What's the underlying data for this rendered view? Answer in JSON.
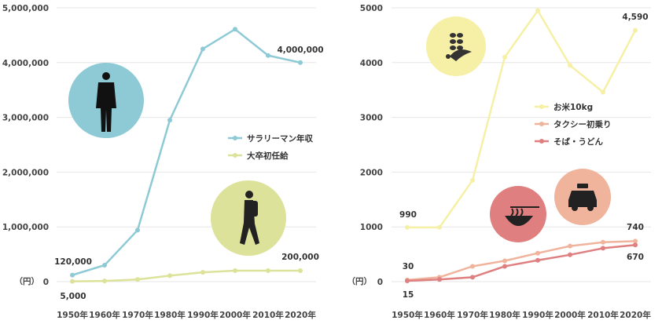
{
  "chart_data": [
    {
      "type": "line",
      "categories": [
        "1950年",
        "1960年",
        "1970年",
        "1980年",
        "1990年",
        "2000年",
        "2010年",
        "2020年"
      ],
      "ylim": [
        0,
        5000000
      ],
      "yticks": [
        "0",
        "1,000,000",
        "2,000,000",
        "3,000,000",
        "4,000,000",
        "5,000,000"
      ],
      "unit": "（円）",
      "grid": true,
      "legend_position": "right-middle",
      "series": [
        {
          "name": "サラリーマン年収",
          "color": "#8ecad5",
          "values": [
            120000,
            300000,
            940000,
            2950000,
            4250000,
            4610000,
            4130000,
            4000000
          ]
        },
        {
          "name": "大卒初任給",
          "color": "#dde29a",
          "values": [
            5000,
            12000,
            40000,
            110000,
            170000,
            200000,
            200000,
            200000
          ]
        }
      ],
      "data_labels": [
        {
          "text": "120,000"
        },
        {
          "text": "5,000"
        },
        {
          "text": "4,000,000"
        },
        {
          "text": "200,000"
        }
      ],
      "icons": [
        {
          "name": "businessman-icon",
          "color": "#8ecad5"
        },
        {
          "name": "student-walking-icon",
          "color": "#dde29a"
        }
      ]
    },
    {
      "type": "line",
      "categories": [
        "1950年",
        "1960年",
        "1970年",
        "1980年",
        "1990年",
        "2000年",
        "2010年",
        "2020年"
      ],
      "ylim": [
        0,
        5000
      ],
      "yticks": [
        "0",
        "1000",
        "2000",
        "3000",
        "4000",
        "5000"
      ],
      "unit": "（円）",
      "grid": true,
      "legend_position": "right-middle",
      "series": [
        {
          "name": "お米10kg",
          "color": "#f6f0a6",
          "values": [
            990,
            990,
            1850,
            4100,
            4950,
            3950,
            3460,
            4590
          ]
        },
        {
          "name": "タクシー初乗り",
          "color": "#f0b39c",
          "values": [
            30,
            80,
            280,
            380,
            520,
            650,
            720,
            740
          ]
        },
        {
          "name": "そば・うどん",
          "color": "#df7f7f",
          "values": [
            15,
            40,
            80,
            280,
            390,
            490,
            610,
            670
          ]
        }
      ],
      "data_labels": [
        {
          "text": "990"
        },
        {
          "text": "30"
        },
        {
          "text": "15"
        },
        {
          "text": "4,590"
        },
        {
          "text": "740"
        },
        {
          "text": "670"
        }
      ],
      "icons": [
        {
          "name": "rice-plant-icon",
          "color": "#f6f0a6"
        },
        {
          "name": "taxi-icon",
          "color": "#f0b39c"
        },
        {
          "name": "noodle-bowl-icon",
          "color": "#df7f7f"
        }
      ]
    }
  ]
}
